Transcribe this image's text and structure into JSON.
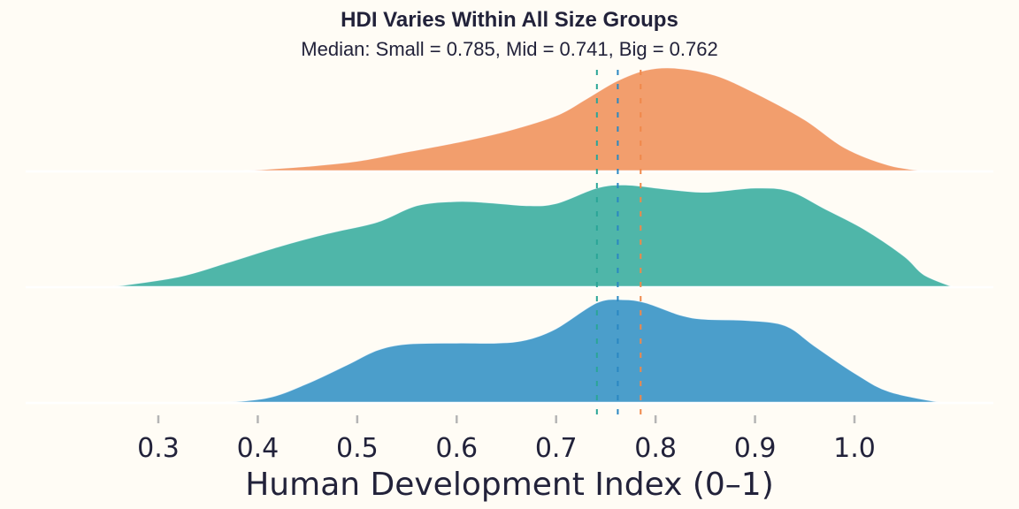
{
  "chart_data": {
    "type": "ridgeline",
    "title": "HDI Varies Within All Size Groups",
    "subtitle": "Median: Small = 0.785, Mid = 0.741, Big = 0.762",
    "xlabel": "Human Development Index (0–1)",
    "ylabel": "",
    "xlim": [
      0.165,
      1.0
    ],
    "xticks": [
      0.3,
      0.4,
      0.5,
      0.6,
      0.7,
      0.8,
      0.9,
      1.0
    ],
    "xtick_labels": [
      "0.3",
      "0.4",
      "0.5",
      "0.6",
      "0.7",
      "0.8",
      "0.9",
      "1.0"
    ],
    "grid": false,
    "legend": "none",
    "series": [
      {
        "name": "Small",
        "color": "#f29e6d",
        "median": 0.785,
        "median_color": "#f0884a",
        "density_x": [
          0.376,
          0.45,
          0.5,
          0.55,
          0.6,
          0.65,
          0.7,
          0.73,
          0.76,
          0.79,
          0.82,
          0.86,
          0.9,
          0.95,
          0.99,
          1.035,
          1.075
        ],
        "density_y": [
          0.0,
          0.05,
          0.1,
          0.19,
          0.28,
          0.39,
          0.54,
          0.7,
          0.87,
          0.98,
          1.0,
          0.93,
          0.76,
          0.5,
          0.23,
          0.06,
          0.0
        ]
      },
      {
        "name": "Mid",
        "color": "#4fb6a9",
        "median": 0.741,
        "median_color": "#2aa597",
        "density_x": [
          0.25,
          0.32,
          0.37,
          0.42,
          0.47,
          0.52,
          0.56,
          0.6,
          0.63,
          0.67,
          0.7,
          0.741,
          0.77,
          0.81,
          0.85,
          0.9,
          0.935,
          0.97,
          1.01,
          1.05,
          1.07,
          1.1
        ],
        "density_y": [
          0.0,
          0.1,
          0.24,
          0.39,
          0.52,
          0.63,
          0.79,
          0.83,
          0.82,
          0.79,
          0.81,
          0.96,
          0.99,
          0.95,
          0.92,
          0.96,
          0.93,
          0.76,
          0.56,
          0.3,
          0.12,
          0.0
        ]
      },
      {
        "name": "Big",
        "color": "#4b9ecb",
        "median": 0.762,
        "median_color": "#2a87c2",
        "density_x": [
          0.36,
          0.41,
          0.45,
          0.49,
          0.52,
          0.55,
          0.6,
          0.64,
          0.67,
          0.7,
          0.741,
          0.767,
          0.79,
          0.825,
          0.85,
          0.89,
          0.93,
          0.96,
          1.0,
          1.035,
          1.09
        ],
        "density_y": [
          0.0,
          0.05,
          0.19,
          0.37,
          0.51,
          0.57,
          0.58,
          0.58,
          0.61,
          0.72,
          0.97,
          1.0,
          0.97,
          0.85,
          0.81,
          0.8,
          0.75,
          0.55,
          0.29,
          0.11,
          0.0
        ]
      }
    ]
  }
}
